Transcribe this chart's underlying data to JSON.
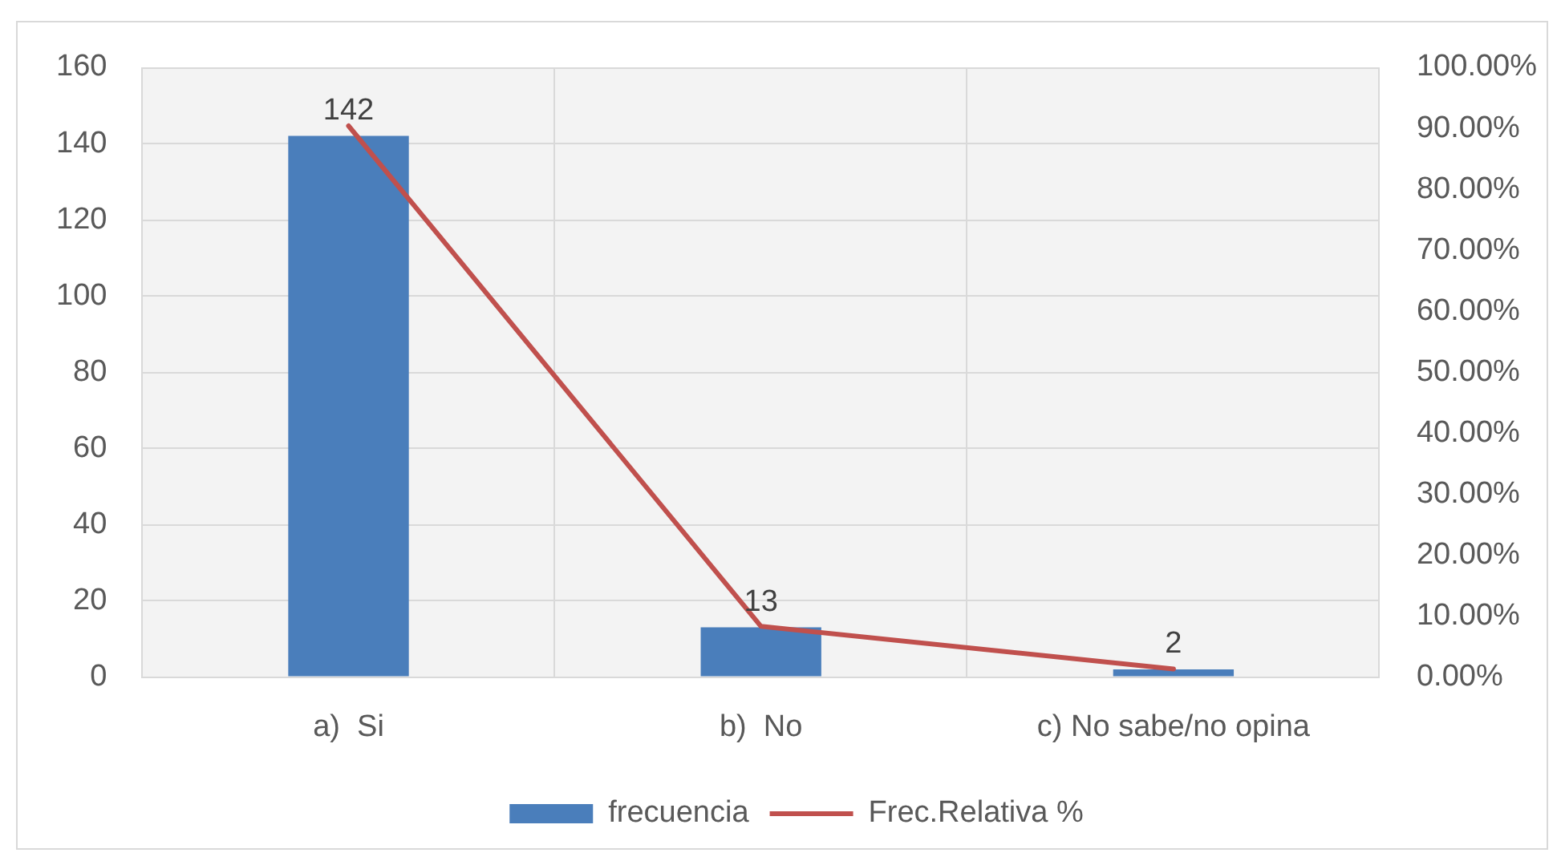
{
  "chart_data": {
    "type": "bar",
    "categories": [
      "a)  Si",
      "b)  No",
      "c) No sabe/no opina"
    ],
    "series": [
      {
        "name": "frecuencia",
        "color": "#4a7ebb",
        "values": [
          142,
          13,
          2
        ],
        "value_labels": [
          "142",
          "13",
          "2"
        ]
      },
      {
        "name": "Frec.Relativa %",
        "type": "line",
        "axis": "y2",
        "color": "#c0504d",
        "values": [
          90.4,
          8.3,
          1.3
        ]
      }
    ],
    "ylim": [
      0,
      160
    ],
    "yticks": [
      0,
      20,
      40,
      60,
      80,
      100,
      120,
      140,
      160
    ],
    "y2lim": [
      0,
      100
    ],
    "y2ticks": [
      {
        "value": 0,
        "label": "0.00%"
      },
      {
        "value": 10,
        "label": "10.00%"
      },
      {
        "value": 20,
        "label": "20.00%"
      },
      {
        "value": 30,
        "label": "30.00%"
      },
      {
        "value": 40,
        "label": "40.00%"
      },
      {
        "value": 50,
        "label": "50.00%"
      },
      {
        "value": 60,
        "label": "60.00%"
      },
      {
        "value": 70,
        "label": "70.00%"
      },
      {
        "value": 80,
        "label": "80.00%"
      },
      {
        "value": 90,
        "label": "90.00%"
      },
      {
        "value": 100,
        "label": "100.00%"
      }
    ],
    "grid": true,
    "legend": "bottom",
    "marker": "none"
  }
}
